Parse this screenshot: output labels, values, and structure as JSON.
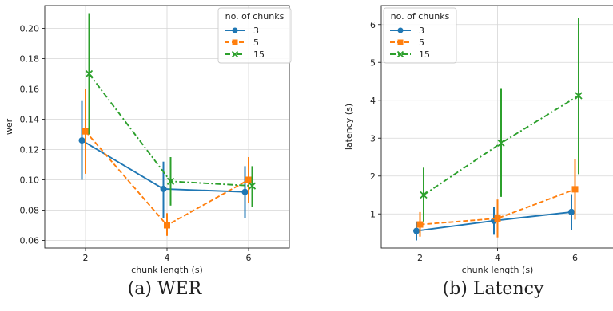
{
  "chart_data": [
    {
      "type": "line",
      "caption": "(a) WER",
      "xlabel": "chunk length (s)",
      "ylabel": "wer",
      "x": [
        2,
        4,
        6
      ],
      "xlim": [
        1,
        7
      ],
      "ylim": [
        0.055,
        0.215
      ],
      "xticks": [
        2,
        4,
        6
      ],
      "yticks": [
        0.06,
        0.08,
        0.1,
        0.12,
        0.14,
        0.16,
        0.18,
        0.2
      ],
      "ytick_labels": [
        "0.06",
        "0.08",
        "0.10",
        "0.12",
        "0.14",
        "0.16",
        "0.18",
        "0.20"
      ],
      "grid": true,
      "legend": {
        "title": "no. of chunks",
        "position": "top-right"
      },
      "series": [
        {
          "name": "3",
          "color": "#1f77b4",
          "marker": "circle",
          "linestyle": "solid",
          "values": [
            0.126,
            0.094,
            0.092
          ],
          "err": [
            [
              0.1,
              0.152
            ],
            [
              0.075,
              0.112
            ],
            [
              0.075,
              0.109
            ]
          ]
        },
        {
          "name": "5",
          "color": "#ff7f0e",
          "marker": "square",
          "linestyle": "dashed",
          "values": [
            0.132,
            0.07,
            0.1
          ],
          "err": [
            [
              0.104,
              0.16
            ],
            [
              0.063,
              0.078
            ],
            [
              0.085,
              0.115
            ]
          ]
        },
        {
          "name": "15",
          "color": "#2ca02c",
          "marker": "x",
          "linestyle": "dashdot",
          "values": [
            0.17,
            0.099,
            0.096
          ],
          "err": [
            [
              0.13,
              0.21
            ],
            [
              0.083,
              0.115
            ],
            [
              0.082,
              0.109
            ]
          ]
        }
      ]
    },
    {
      "type": "line",
      "caption": "(b) Latency",
      "xlabel": "chunk length (s)",
      "ylabel": "latency (s)",
      "x": [
        2,
        4,
        6
      ],
      "xlim": [
        1,
        7
      ],
      "ylim": [
        0.1,
        6.5
      ],
      "xticks": [
        2,
        4,
        6
      ],
      "yticks": [
        1,
        2,
        3,
        4,
        5,
        6
      ],
      "ytick_labels": [
        "1",
        "2",
        "3",
        "4",
        "5",
        "6"
      ],
      "grid": true,
      "legend": {
        "title": "no. of chunks",
        "position": "top-left"
      },
      "series": [
        {
          "name": "3",
          "color": "#1f77b4",
          "marker": "circle",
          "linestyle": "solid",
          "values": [
            0.55,
            0.82,
            1.05
          ],
          "err": [
            [
              0.3,
              0.8
            ],
            [
              0.45,
              1.18
            ],
            [
              0.58,
              1.52
            ]
          ]
        },
        {
          "name": "5",
          "color": "#ff7f0e",
          "marker": "square",
          "linestyle": "dashed",
          "values": [
            0.72,
            0.88,
            1.65
          ],
          "err": [
            [
              0.4,
              1.05
            ],
            [
              0.38,
              1.38
            ],
            [
              0.85,
              2.45
            ]
          ]
        },
        {
          "name": "15",
          "color": "#2ca02c",
          "marker": "x",
          "linestyle": "dashdot",
          "values": [
            1.5,
            2.87,
            4.12
          ],
          "err": [
            [
              0.8,
              2.22
            ],
            [
              1.45,
              4.32
            ],
            [
              2.05,
              6.18
            ]
          ]
        }
      ]
    }
  ]
}
